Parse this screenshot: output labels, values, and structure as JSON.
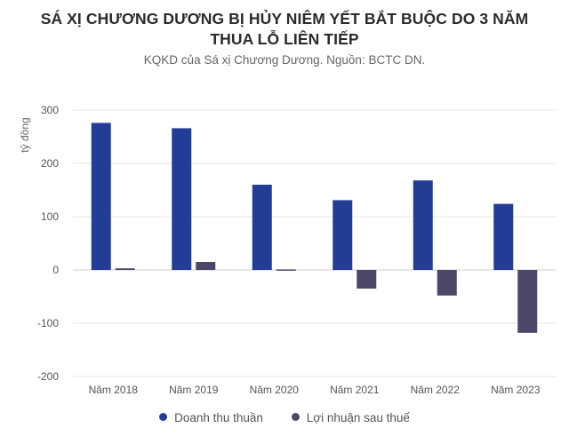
{
  "title_line1": "SÁ XỊ CHƯƠNG DƯƠNG BỊ HỦY NIÊM YẾT BẮT BUỘC DO 3 NĂM",
  "title_line2": "THUA LỖ LIÊN TIẾP",
  "subtitle": "KQKD của Sá xị Chương Dương. Nguồn: BCTC DN.",
  "colors": {
    "revenue": "#233d96",
    "profit": "#4d4668",
    "grid": "#e6e6e6",
    "zero": "#cfcfcf"
  },
  "chart_data": {
    "type": "bar",
    "ylabel": "tỷ đồng",
    "ylim": [
      -200,
      300
    ],
    "yticks": [
      300,
      200,
      100,
      0,
      -100,
      -200
    ],
    "grid": true,
    "legend_position": "bottom",
    "categories": [
      "Năm 2018",
      "Năm 2019",
      "Năm 2020",
      "Năm 2021",
      "Năm 2022",
      "Năm 2023"
    ],
    "series": [
      {
        "name": "Doanh thu thuần",
        "color": "#233d96",
        "values": [
          276,
          266,
          160,
          131,
          168,
          124
        ]
      },
      {
        "name": "Lợi nhuận sau thuế",
        "color": "#4d4668",
        "values": [
          3,
          15,
          1,
          -35,
          -48,
          -118
        ]
      }
    ]
  }
}
